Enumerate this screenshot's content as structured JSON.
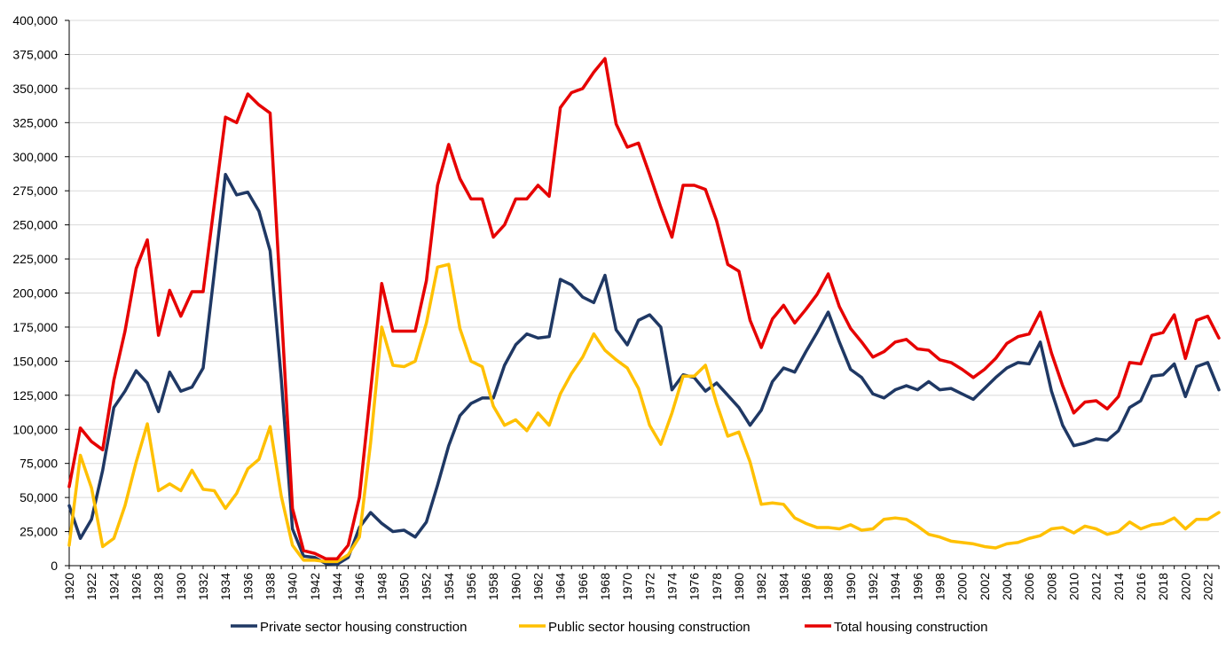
{
  "chart_data": {
    "type": "line",
    "title": "",
    "xlabel": "",
    "ylabel": "",
    "ylim": [
      0,
      400000
    ],
    "yticks": [
      0,
      25000,
      50000,
      75000,
      100000,
      125000,
      150000,
      175000,
      200000,
      225000,
      250000,
      275000,
      300000,
      325000,
      350000,
      375000,
      400000
    ],
    "ytick_labels": [
      "0",
      "25,000",
      "50,000",
      "75,000",
      "100,000",
      "125,000",
      "150,000",
      "175,000",
      "200,000",
      "225,000",
      "250,000",
      "275,000",
      "300,000",
      "325,000",
      "350,000",
      "375,000",
      "400,000"
    ],
    "xtick_labels": [
      "1920",
      "1922",
      "1924",
      "1926",
      "1928",
      "1930",
      "1932",
      "1934",
      "1936",
      "1938",
      "1940",
      "1942",
      "1944",
      "1946",
      "1948",
      "1950",
      "1952",
      "1954",
      "1956",
      "1958",
      "1960",
      "1962",
      "1964",
      "1966",
      "1968",
      "1970",
      "1972",
      "1974",
      "1976",
      "1978",
      "1980",
      "1982",
      "1984",
      "1986",
      "1988",
      "1990",
      "1992",
      "1994",
      "1996",
      "1998",
      "2000",
      "2002",
      "2004",
      "2006",
      "2008",
      "2010",
      "2012",
      "2014",
      "2016",
      "2018",
      "2020",
      "2022"
    ],
    "grid": "horizontal",
    "legend_position": "bottom",
    "x": [
      1920,
      1921,
      1922,
      1923,
      1924,
      1925,
      1926,
      1927,
      1928,
      1929,
      1930,
      1931,
      1932,
      1933,
      1934,
      1935,
      1936,
      1937,
      1938,
      1939,
      1940,
      1941,
      1942,
      1943,
      1944,
      1945,
      1946,
      1947,
      1948,
      1949,
      1950,
      1951,
      1952,
      1953,
      1954,
      1955,
      1956,
      1957,
      1958,
      1959,
      1960,
      1961,
      1962,
      1963,
      1964,
      1965,
      1966,
      1967,
      1968,
      1969,
      1970,
      1971,
      1972,
      1973,
      1974,
      1975,
      1976,
      1977,
      1978,
      1979,
      1980,
      1981,
      1982,
      1983,
      1984,
      1985,
      1986,
      1987,
      1988,
      1989,
      1990,
      1991,
      1992,
      1993,
      1994,
      1995,
      1996,
      1997,
      1998,
      1999,
      2000,
      2001,
      2002,
      2003,
      2004,
      2005,
      2006,
      2007,
      2008,
      2009,
      2010,
      2011,
      2012,
      2013,
      2014,
      2015,
      2016,
      2017,
      2018,
      2019,
      2020,
      2021,
      2022,
      2023
    ],
    "series": [
      {
        "name": "Private sector housing construction",
        "color": "#1f3864",
        "values": [
          44000,
          20000,
          34000,
          70000,
          116000,
          128000,
          143000,
          134000,
          113000,
          142000,
          128000,
          131000,
          145000,
          215000,
          287000,
          272000,
          274000,
          260000,
          231000,
          137000,
          27000,
          7000,
          6000,
          1500,
          1000,
          6000,
          28000,
          39000,
          31000,
          25000,
          26000,
          21000,
          32000,
          59000,
          88000,
          110000,
          119000,
          123000,
          123000,
          147000,
          162000,
          170000,
          167000,
          168000,
          210000,
          206000,
          197000,
          193000,
          213000,
          173000,
          162000,
          180000,
          184000,
          175000,
          129000,
          140000,
          138000,
          128000,
          134000,
          125000,
          116000,
          103000,
          114000,
          135000,
          145000,
          142000,
          157000,
          171000,
          186000,
          164000,
          144000,
          138000,
          126000,
          123000,
          129000,
          132000,
          129000,
          135000,
          129000,
          130000,
          126000,
          122000,
          130000,
          138000,
          145000,
          149000,
          148000,
          164000,
          128000,
          103000,
          88000,
          90000,
          93000,
          92000,
          99000,
          116000,
          121000,
          139000,
          140000,
          148000,
          124000,
          146000,
          149000,
          129000
        ]
      },
      {
        "name": "Public sector housing construction",
        "color": "#ffc000",
        "values": [
          15000,
          81000,
          57000,
          14000,
          20000,
          44000,
          76000,
          104000,
          55000,
          60000,
          55000,
          70000,
          56000,
          55000,
          42000,
          53000,
          71000,
          78000,
          102000,
          51000,
          15000,
          4000,
          4000,
          3000,
          3000,
          8000,
          21000,
          90000,
          175000,
          147000,
          146000,
          150000,
          178000,
          219000,
          221000,
          174000,
          150000,
          146000,
          117000,
          103000,
          107000,
          99000,
          112000,
          103000,
          126000,
          141000,
          153000,
          170000,
          158000,
          151000,
          145000,
          130000,
          103000,
          89000,
          112000,
          139000,
          139000,
          147000,
          119000,
          95000,
          98000,
          76000,
          45000,
          46000,
          45000,
          35000,
          31000,
          28000,
          28000,
          27000,
          30000,
          26000,
          27000,
          34000,
          35000,
          34000,
          29000,
          23000,
          21000,
          18000,
          17000,
          16000,
          14000,
          13000,
          16000,
          17000,
          20000,
          22000,
          27000,
          28000,
          24000,
          29000,
          27000,
          23000,
          25000,
          32000,
          27000,
          30000,
          31000,
          35000,
          27000,
          34000,
          34000,
          39000
        ]
      },
      {
        "name": "Total housing construction",
        "color": "#e60000",
        "values": [
          58000,
          101000,
          91000,
          85000,
          136000,
          172000,
          218000,
          239000,
          169000,
          202000,
          183000,
          201000,
          201000,
          265000,
          329000,
          325000,
          346000,
          338000,
          332000,
          188000,
          42000,
          11000,
          9000,
          5000,
          5000,
          15000,
          50000,
          128000,
          207000,
          172000,
          172000,
          172000,
          209000,
          279000,
          309000,
          284000,
          269000,
          269000,
          241000,
          250000,
          269000,
          269000,
          279000,
          271000,
          336000,
          347000,
          350000,
          362000,
          372000,
          324000,
          307000,
          310000,
          287000,
          263000,
          241000,
          279000,
          279000,
          276000,
          253000,
          221000,
          216000,
          180000,
          160000,
          181000,
          191000,
          178000,
          188000,
          199000,
          214000,
          190000,
          174000,
          164000,
          153000,
          157000,
          164000,
          166000,
          159000,
          158000,
          151000,
          149000,
          144000,
          138000,
          144000,
          152000,
          163000,
          168000,
          170000,
          186000,
          156000,
          132000,
          112000,
          120000,
          121000,
          115000,
          124000,
          149000,
          148000,
          169000,
          171000,
          184000,
          152000,
          180000,
          183000,
          167000
        ]
      }
    ]
  }
}
